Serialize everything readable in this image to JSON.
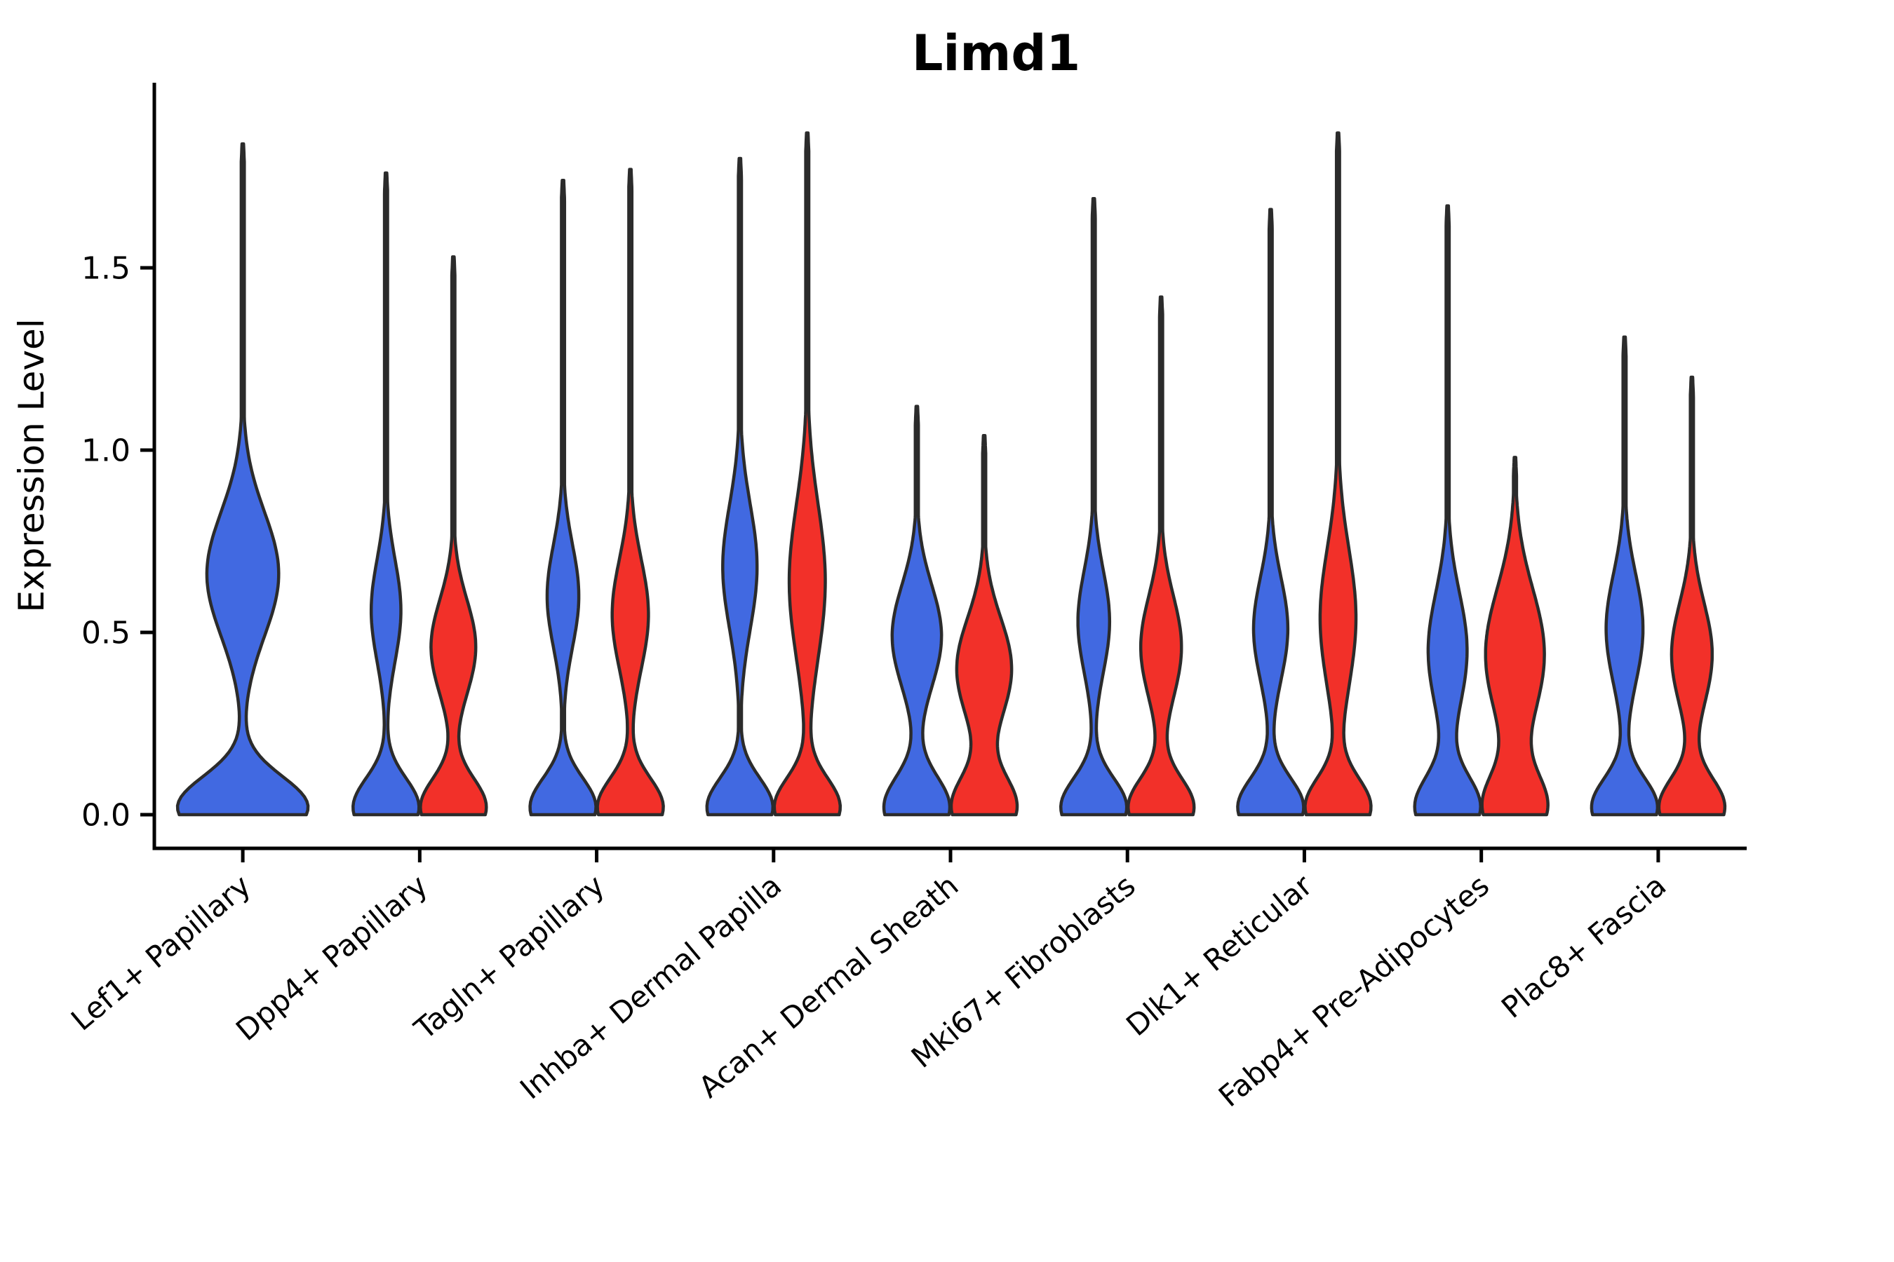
{
  "figure": {
    "background": "#FFFFFF",
    "title": "Limd1",
    "ylabel": "Expression Level"
  },
  "chart_data": {
    "type": "violin",
    "title": "Limd1",
    "xlabel": "",
    "ylabel": "Expression Level",
    "ylim": [
      -0.09,
      2.0
    ],
    "yticks": [
      0.0,
      0.5,
      1.0,
      1.5
    ],
    "ytick_labels": [
      "0.0",
      "0.5",
      "1.0",
      "1.5"
    ],
    "grid": false,
    "legend": "none",
    "categories": [
      "Lef1+ Papillary",
      "Dpp4+ Papillary",
      "Tagln+ Papillary",
      "Inhba+ Dermal Papilla",
      "Acan+ Dermal Sheath",
      "Mki67+ Fibroblasts",
      "Dlk1+ Reticular",
      "Fabp4+ Pre-Adipocytes",
      "Plac8+ Fascia"
    ],
    "groups": [
      {
        "name": "blue",
        "color": "#4169E1"
      },
      {
        "name": "red",
        "color": "#F23029"
      }
    ],
    "outline_color": "#2B2B2B",
    "axis_color": "#000000",
    "violins": [
      {
        "category_index": 0,
        "group": "blue",
        "layout": "full",
        "max": 1.84,
        "mode": 0.66,
        "shape": {
          "b": 0.66,
          "sb": 0.17,
          "ab": 0.55,
          "s0": 0.085
        }
      },
      {
        "category_index": 1,
        "group": "blue",
        "layout": "pair",
        "max": 1.76,
        "mode": 0.56,
        "shape": {
          "b": 0.56,
          "sb": 0.14,
          "ab": 0.45,
          "s0": 0.08
        }
      },
      {
        "category_index": 1,
        "group": "red",
        "layout": "pair",
        "max": 1.53,
        "mode": 0.46,
        "shape": {
          "b": 0.46,
          "sb": 0.13,
          "ab": 0.68,
          "s0": 0.08
        }
      },
      {
        "category_index": 2,
        "group": "blue",
        "layout": "pair",
        "max": 1.74,
        "mode": 0.6,
        "shape": {
          "b": 0.6,
          "sb": 0.14,
          "ab": 0.48,
          "s0": 0.08
        }
      },
      {
        "category_index": 2,
        "group": "red",
        "layout": "pair",
        "max": 1.77,
        "mode": 0.55,
        "shape": {
          "b": 0.55,
          "sb": 0.15,
          "ab": 0.55,
          "s0": 0.08
        }
      },
      {
        "category_index": 3,
        "group": "blue",
        "layout": "pair",
        "max": 1.8,
        "mode": 0.68,
        "shape": {
          "b": 0.68,
          "sb": 0.17,
          "ab": 0.52,
          "s0": 0.08
        }
      },
      {
        "category_index": 3,
        "group": "red",
        "layout": "pair",
        "max": 1.87,
        "mode": 0.64,
        "shape": {
          "b": 0.64,
          "sb": 0.21,
          "ab": 0.55,
          "s0": 0.08
        }
      },
      {
        "category_index": 4,
        "group": "blue",
        "layout": "pair",
        "max": 1.12,
        "mode": 0.49,
        "shape": {
          "b": 0.49,
          "sb": 0.14,
          "ab": 0.75,
          "s0": 0.085
        }
      },
      {
        "category_index": 4,
        "group": "red",
        "layout": "pair",
        "max": 1.04,
        "mode": 0.4,
        "shape": {
          "b": 0.4,
          "sb": 0.14,
          "ab": 0.85,
          "s0": 0.085
        }
      },
      {
        "category_index": 5,
        "group": "blue",
        "layout": "pair",
        "max": 1.69,
        "mode": 0.53,
        "shape": {
          "b": 0.53,
          "sb": 0.14,
          "ab": 0.48,
          "s0": 0.08
        }
      },
      {
        "category_index": 5,
        "group": "red",
        "layout": "pair",
        "max": 1.42,
        "mode": 0.46,
        "shape": {
          "b": 0.46,
          "sb": 0.14,
          "ab": 0.62,
          "s0": 0.08
        }
      },
      {
        "category_index": 6,
        "group": "blue",
        "layout": "pair",
        "max": 1.66,
        "mode": 0.51,
        "shape": {
          "b": 0.51,
          "sb": 0.14,
          "ab": 0.52,
          "s0": 0.08
        }
      },
      {
        "category_index": 6,
        "group": "red",
        "layout": "pair",
        "max": 1.87,
        "mode": 0.54,
        "shape": {
          "b": 0.54,
          "sb": 0.19,
          "ab": 0.55,
          "s0": 0.08
        }
      },
      {
        "category_index": 7,
        "group": "blue",
        "layout": "pair",
        "max": 1.67,
        "mode": 0.45,
        "shape": {
          "b": 0.45,
          "sb": 0.16,
          "ab": 0.6,
          "s0": 0.085
        }
      },
      {
        "category_index": 7,
        "group": "red",
        "layout": "pair",
        "max": 0.98,
        "mode": 0.44,
        "shape": {
          "b": 0.44,
          "sb": 0.18,
          "ab": 0.95,
          "s0": 0.09
        }
      },
      {
        "category_index": 8,
        "group": "blue",
        "layout": "pair",
        "max": 1.31,
        "mode": 0.51,
        "shape": {
          "b": 0.51,
          "sb": 0.15,
          "ab": 0.56,
          "s0": 0.08
        }
      },
      {
        "category_index": 8,
        "group": "red",
        "layout": "pair",
        "max": 1.2,
        "mode": 0.44,
        "shape": {
          "b": 0.44,
          "sb": 0.14,
          "ab": 0.62,
          "s0": 0.08
        }
      }
    ]
  }
}
